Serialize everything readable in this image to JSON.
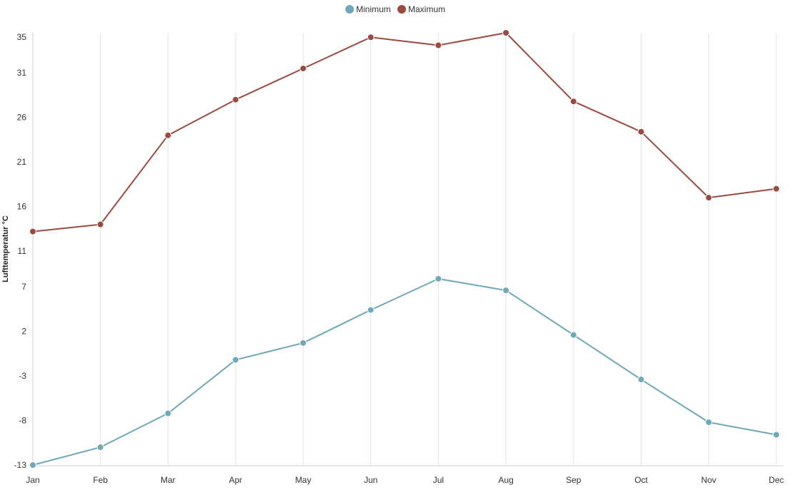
{
  "chart_data": {
    "type": "line",
    "title": "",
    "xlabel": "",
    "ylabel": "Lufttemperatur °C",
    "categories": [
      "Jan",
      "Feb",
      "Mar",
      "Apr",
      "May",
      "Jun",
      "Jul",
      "Aug",
      "Sep",
      "Oct",
      "Nov",
      "Dec"
    ],
    "series": [
      {
        "name": "Minimum",
        "color": "#6ea8b9",
        "values": [
          -13.0,
          -11.0,
          -7.2,
          -1.2,
          0.7,
          4.4,
          7.9,
          6.6,
          1.6,
          -3.4,
          -8.2,
          -9.6
        ]
      },
      {
        "name": "Maximum",
        "color": "#9b4a3f",
        "values": [
          13.2,
          14.0,
          24.0,
          28.0,
          31.5,
          35.0,
          34.1,
          35.5,
          27.8,
          24.4,
          17.0,
          18.0
        ]
      }
    ],
    "y_ticks": [
      "35",
      "31",
      "26",
      "21",
      "16",
      "11",
      "7",
      "2",
      "-3",
      "-8",
      "-13"
    ],
    "ylim": [
      -13,
      35.5
    ],
    "grid": {
      "vertical": true,
      "horizontal": false
    },
    "legend_position": "top-center"
  }
}
